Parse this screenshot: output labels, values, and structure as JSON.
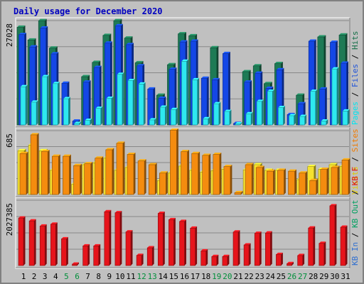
{
  "chart_data": {
    "type": "bar",
    "title": "Daily usage for December 2020",
    "categories": [
      "1",
      "2",
      "3",
      "4",
      "5",
      "6",
      "7",
      "8",
      "9",
      "10",
      "11",
      "12",
      "13",
      "14",
      "15",
      "16",
      "17",
      "18",
      "19",
      "20",
      "21",
      "22",
      "23",
      "24",
      "25",
      "26",
      "27",
      "28",
      "29",
      "30",
      "31"
    ],
    "weekend_days": [
      "5",
      "6",
      "12",
      "13",
      "19",
      "20",
      "26",
      "27"
    ],
    "panels": [
      {
        "id": "top",
        "max_label": "27028",
        "ymax": 27028,
        "grid": true,
        "right_label": [
          "Pages",
          " / ",
          "Files",
          " / ",
          "Hits"
        ],
        "series": [
          {
            "name": "Hits",
            "color": "#1e7a55",
            "values": [
              25300,
              22000,
              27000,
              19900,
              0,
              0,
              12500,
              16200,
              23200,
              27000,
              22500,
              16100,
              0,
              7700,
              15600,
              23600,
              23100,
              0,
              20000,
              0,
              0,
              13800,
              15300,
              10700,
              15900,
              0,
              7700,
              0,
              22800,
              0,
              23300
            ]
          },
          {
            "name": "Files",
            "color": "#1447e6",
            "values": [
              23400,
              20200,
              25100,
              18400,
              10800,
              1000,
              11100,
              14900,
              21200,
              25700,
              20800,
              15300,
              9300,
              6900,
              14400,
              21500,
              21700,
              12100,
              11700,
              18500,
              400,
              11100,
              13400,
              9500,
              14300,
              2700,
              5500,
              21700,
              9300,
              21400,
              16000
            ]
          },
          {
            "name": "Pages",
            "color": "#2ee8f0",
            "values": [
              9900,
              5900,
              12500,
              10700,
              6800,
              400,
              1200,
              4300,
              6900,
              13100,
              11500,
              10600,
              1300,
              4600,
              4000,
              16500,
              11700,
              1600,
              5500,
              3500,
              200,
              2900,
              6100,
              8700,
              4500,
              2400,
              2200,
              8700,
              1000,
              14500,
              3600
            ]
          }
        ]
      },
      {
        "id": "middle",
        "max_label": "685",
        "ymax": 685,
        "grid": true,
        "right_label": [
          "Visits",
          " / ",
          "Sites"
        ],
        "series": [
          {
            "name": "Visits",
            "color": "#f5e12f",
            "values": [
              470,
              530,
              470,
              260,
              0,
              110,
              320,
              340,
              390,
              260,
              290,
              0,
              0,
              150,
              230,
              305,
              260,
              240,
              255,
              270,
              0,
              265,
              320,
              260,
              260,
              0,
              160,
              300,
              270,
              320,
              300
            ]
          },
          {
            "name": "Sites",
            "color": "#f48c0f",
            "values": [
              440,
              640,
              460,
              410,
              410,
              310,
              330,
              390,
              480,
              550,
              430,
              360,
              320,
              230,
              690,
              460,
              440,
              420,
              430,
              300,
              20,
              320,
              290,
              250,
              260,
              250,
              230,
              150,
              270,
              290,
              370
            ]
          }
        ]
      },
      {
        "id": "bottom",
        "max_label": "2027385",
        "ymax": 2027385,
        "grid": true,
        "right_label": [
          "KB In",
          " / ",
          "KB Out",
          " / ",
          "KB F"
        ],
        "series": [
          {
            "name": "KB F",
            "color": "#e6141b",
            "values": [
              1475000,
              1385000,
              1225000,
              1285000,
              830000,
              45000,
              610000,
              610000,
              1670000,
              1640000,
              1045000,
              315000,
              550000,
              1620000,
              1425000,
              1370000,
              1160000,
              455000,
              280000,
              280000,
              1040000,
              640000,
              1000000,
              1010000,
              345000,
              60000,
              310000,
              1165000,
              690000,
              1855000,
              1190000
            ]
          }
        ]
      }
    ],
    "xlabel": "",
    "ylabel": ""
  },
  "colors": {
    "background": "#c0c0c0",
    "plot_bg": "#c0c0c0",
    "title": "#0000c0",
    "weekday_label": "#000000",
    "weekend_label": "#008e3a",
    "pages_label": "#00e5f0",
    "files_label": "#2255d8",
    "hits_label": "#156f48",
    "visits_label": "#e0c800",
    "sites_label": "#f07a00",
    "kbin_label": "#2f6fd0",
    "kbout_label": "#00a060",
    "kbf_label": "#e01010",
    "sep_label": "#000000"
  }
}
